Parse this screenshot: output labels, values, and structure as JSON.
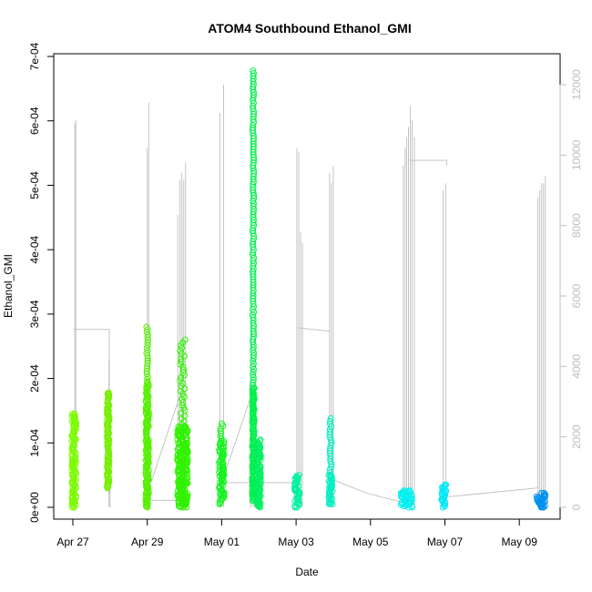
{
  "chart_data": {
    "type": "scatter",
    "title": "ATOM4 Southbound Ethanol_GMI",
    "xlabel": "Date",
    "ylabel": "Ethanol_GMI",
    "x_ticks": [
      "Apr 27",
      "Apr 29",
      "May 01",
      "May 03",
      "May 05",
      "May 07",
      "May 09"
    ],
    "y_ticks": [
      "0e+00",
      "1e-04",
      "2e-04",
      "3e-04",
      "4e-04",
      "5e-04",
      "6e-04",
      "7e-04"
    ],
    "y2_ticks": [
      "0",
      "2000",
      "4000",
      "6000",
      "8000",
      "10000",
      "12000"
    ],
    "xlim_days": [
      -0.6,
      12.9
    ],
    "ylim": [
      0,
      0.0007
    ],
    "y2lim": [
      0,
      12000
    ],
    "grid": false,
    "legend": "none",
    "flights": [
      {
        "day": 0.03,
        "width": 0.12,
        "ymin": 0.0,
        "ymax": 0.000145,
        "dense": [
          0.0,
          0.000145
        ],
        "color": "#7CFC00"
      },
      {
        "day": 0.95,
        "width": 0.06,
        "ymin": 3e-05,
        "ymax": 0.000178,
        "dense": [
          3e-05,
          0.000178
        ],
        "color": "#76F000"
      },
      {
        "day": 2.0,
        "width": 0.08,
        "ymin": 0.0,
        "ymax": 0.00028,
        "dense": [
          0.0,
          0.000195
        ],
        "color": "#55F000"
      },
      {
        "day": 2.95,
        "width": 0.28,
        "ymin": 0.0,
        "ymax": 0.00026,
        "dense": [
          0.0,
          0.000125
        ],
        "color": "#30F200"
      },
      {
        "day": 4.0,
        "width": 0.14,
        "ymin": 5e-06,
        "ymax": 0.00013,
        "dense": [
          5e-06,
          0.000103
        ],
        "color": "#14F21E"
      },
      {
        "day": 4.85,
        "width": 0.06,
        "ymin": 5e-06,
        "ymax": 0.000678,
        "dense": [
          1e-05,
          0.000185
        ],
        "color": "#00F04A"
      },
      {
        "day": 5.0,
        "width": 0.1,
        "ymin": 0.0,
        "ymax": 0.000105,
        "dense": [
          0.0,
          0.000105
        ],
        "color": "#00F060"
      },
      {
        "day": 6.03,
        "width": 0.14,
        "ymin": 0.0,
        "ymax": 5e-05,
        "dense": [
          0.0,
          5e-05
        ],
        "color": "#00F0A0"
      },
      {
        "day": 6.93,
        "width": 0.1,
        "ymin": 5e-06,
        "ymax": 0.000138,
        "dense": [
          5e-06,
          5e-05
        ],
        "color": "#00F0C0"
      },
      {
        "day": 8.97,
        "width": 0.3,
        "ymin": 0.0,
        "ymax": 2.6e-05,
        "dense": [
          0.0,
          2.6e-05
        ],
        "color": "#00F0F0"
      },
      {
        "day": 9.97,
        "width": 0.12,
        "ymin": 0.0,
        "ymax": 3.5e-05,
        "dense": [
          0.0,
          3.5e-05
        ],
        "color": "#00E8F5"
      },
      {
        "day": 12.58,
        "width": 0.24,
        "ymin": 0.0,
        "ymax": 2.2e-05,
        "dense": [
          0.0,
          2.2e-05
        ],
        "color": "#0090F0"
      }
    ],
    "altitude_spikes": [
      {
        "day": 0.05,
        "alt": 10900
      },
      {
        "day": 0.08,
        "alt": 11000
      },
      {
        "day": 0.02,
        "alt": 600
      },
      {
        "day": 0.97,
        "alt": 4200
      },
      {
        "day": 1.0,
        "alt": 3000
      },
      {
        "day": 2.0,
        "alt": 10200
      },
      {
        "day": 2.04,
        "alt": 11500
      },
      {
        "day": 2.82,
        "alt": 8300
      },
      {
        "day": 2.88,
        "alt": 9300
      },
      {
        "day": 2.93,
        "alt": 9500
      },
      {
        "day": 2.98,
        "alt": 9300
      },
      {
        "day": 3.03,
        "alt": 9800
      },
      {
        "day": 3.95,
        "alt": 11200
      },
      {
        "day": 4.05,
        "alt": 12000
      },
      {
        "day": 4.78,
        "alt": 3500
      },
      {
        "day": 4.85,
        "alt": 4200
      },
      {
        "day": 6.02,
        "alt": 10200
      },
      {
        "day": 6.07,
        "alt": 10100
      },
      {
        "day": 6.12,
        "alt": 7800
      },
      {
        "day": 6.17,
        "alt": 7500
      },
      {
        "day": 6.9,
        "alt": 9500
      },
      {
        "day": 6.95,
        "alt": 9200
      },
      {
        "day": 7.0,
        "alt": 9700
      },
      {
        "day": 8.88,
        "alt": 9700
      },
      {
        "day": 8.93,
        "alt": 10200
      },
      {
        "day": 8.97,
        "alt": 10500
      },
      {
        "day": 9.02,
        "alt": 10800
      },
      {
        "day": 9.07,
        "alt": 11400
      },
      {
        "day": 9.12,
        "alt": 11000
      },
      {
        "day": 9.18,
        "alt": 10500
      },
      {
        "day": 9.95,
        "alt": 9000
      },
      {
        "day": 10.02,
        "alt": 9200
      },
      {
        "day": 12.5,
        "alt": 8800
      },
      {
        "day": 12.55,
        "alt": 9000
      },
      {
        "day": 12.6,
        "alt": 9200
      },
      {
        "day": 12.65,
        "alt": 9200
      },
      {
        "day": 12.7,
        "alt": 9400
      }
    ],
    "altitude_connectors": [
      [
        [
          0.02,
          5050
        ],
        [
          0.98,
          5050
        ],
        [
          0.98,
          400
        ]
      ],
      [
        [
          2.05,
          200
        ],
        [
          2.9,
          200
        ]
      ],
      [
        [
          2.1,
          700
        ],
        [
          2.95,
          3400
        ]
      ],
      [
        [
          4.0,
          700
        ],
        [
          4.9,
          3500
        ]
      ],
      [
        [
          4.05,
          700
        ],
        [
          5.1,
          700
        ]
      ],
      [
        [
          5.1,
          700
        ],
        [
          6.0,
          700
        ]
      ],
      [
        [
          6.03,
          5100
        ],
        [
          6.9,
          5000
        ]
      ],
      [
        [
          6.95,
          800
        ],
        [
          7.9,
          400
        ]
      ],
      [
        [
          7.9,
          400
        ],
        [
          9.0,
          100
        ]
      ],
      [
        [
          9.05,
          9850
        ],
        [
          10.05,
          9850
        ],
        [
          10.05,
          9700
        ]
      ],
      [
        [
          10.1,
          300
        ],
        [
          12.5,
          550
        ]
      ]
    ],
    "altitude_color": "#BEBEBE"
  }
}
